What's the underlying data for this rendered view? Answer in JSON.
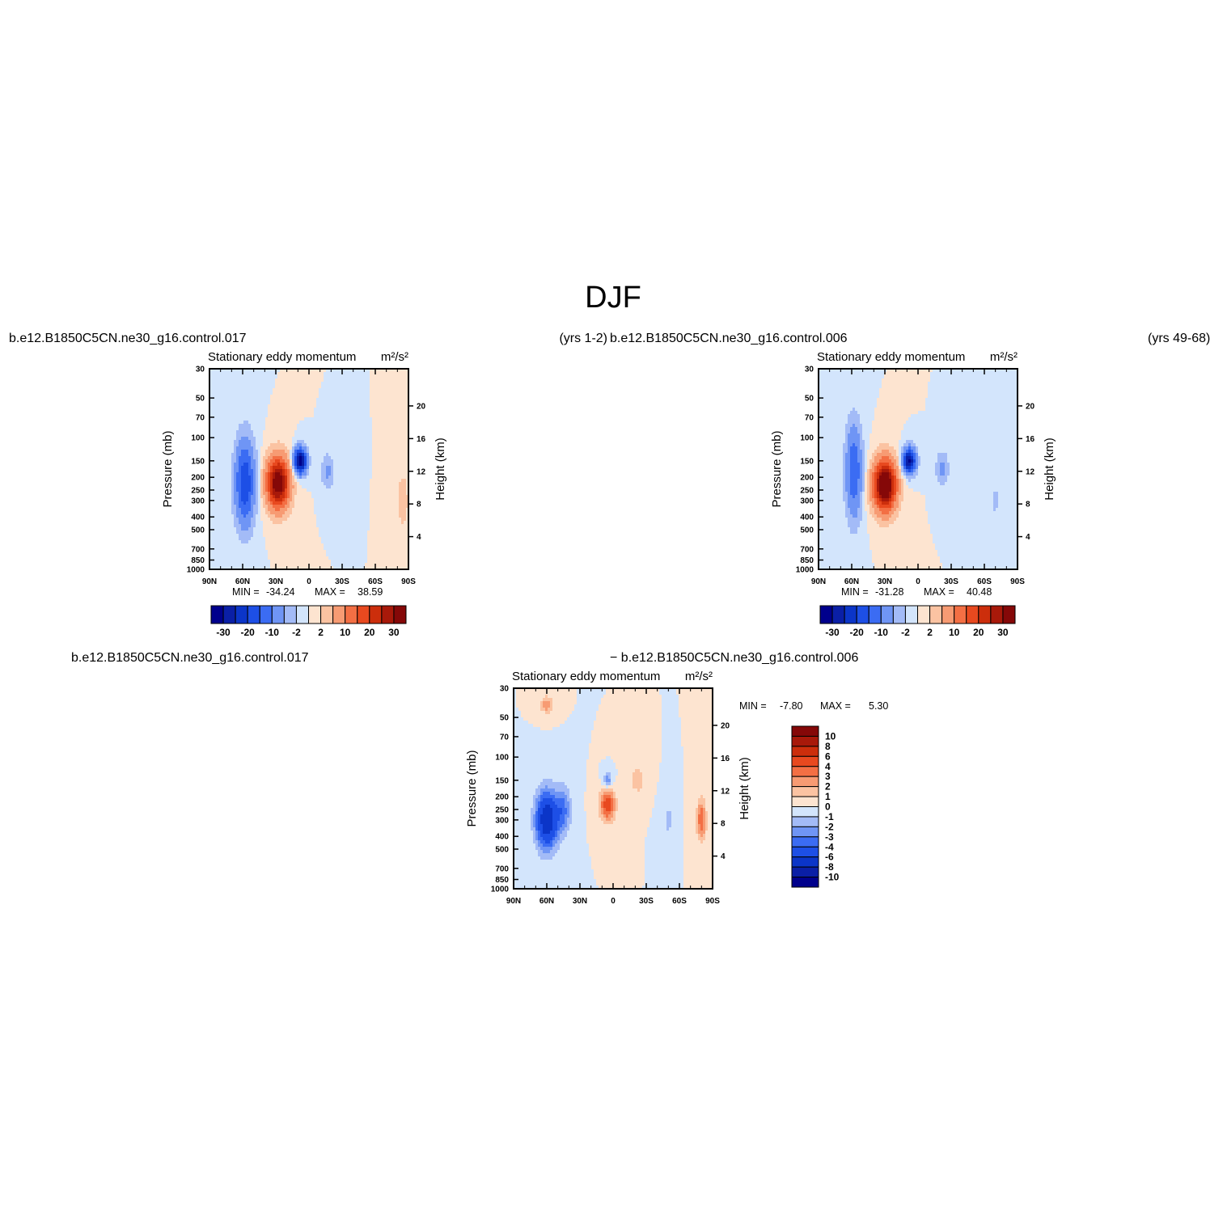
{
  "figure": {
    "title": "DJF",
    "top_left_case": "b.e12.B1850C5CN.ne30_g16.control.017",
    "top_left_years": "(yrs 1-2)",
    "top_right_case": "b.e12.B1850C5CN.ne30_g16.control.006",
    "top_right_years": "(yrs 49-68)",
    "diff_left_case": "b.e12.B1850C5CN.ne30_g16.control.017",
    "diff_right_case": "− b.e12.B1850C5CN.ne30_g16.control.006"
  },
  "colors": {
    "blue_scale": [
      "#00008c",
      "#0a1fa6",
      "#0b35c8",
      "#1d4fe6",
      "#3b6cf3",
      "#6f95f5",
      "#a3bbf7",
      "#d3e5fc"
    ],
    "red_scale": [
      "#fde4d0",
      "#fbc3a2",
      "#f79b73",
      "#f36f44",
      "#e8491f",
      "#cc2e0c",
      "#a8190a",
      "#850808"
    ]
  },
  "chart_data": [
    {
      "id": "panel-017",
      "type": "heatmap",
      "title": "Stationary eddy momentum",
      "units_label": "m²/s²",
      "xlabel": "",
      "ylabel": "Pressure (mb)",
      "y2label": "Height (km)",
      "x_ticks": [
        "90N",
        "60N",
        "30N",
        "0",
        "30S",
        "60S",
        "90S"
      ],
      "x_range": [
        90,
        -90
      ],
      "y_ticks": [
        30,
        50,
        70,
        100,
        150,
        200,
        250,
        300,
        400,
        500,
        700,
        850,
        1000
      ],
      "y_range": [
        30,
        1000
      ],
      "y_scale": "log",
      "y2_ticks": [
        4,
        8,
        12,
        16,
        20
      ],
      "min_label": "MIN = ",
      "min_value": "-34.24",
      "max_label": "MAX = ",
      "max_value": "38.59",
      "contour_levels": [
        -30,
        -25,
        -20,
        -15,
        -10,
        -5,
        -2,
        0,
        2,
        5,
        10,
        15,
        20,
        25,
        30
      ],
      "colorbar_labels": [
        "-30",
        "-20",
        "-10",
        "-2",
        "2",
        "10",
        "20",
        "30"
      ],
      "features": [
        {
          "lat": 58,
          "p": 220,
          "amp": -20,
          "wlat": 6,
          "wlog": 0.5
        },
        {
          "lat": 28,
          "p": 220,
          "amp": 36,
          "wlat": 7,
          "wlog": 0.3
        },
        {
          "lat": 8,
          "p": 150,
          "amp": -34,
          "wlat": 4,
          "wlog": 0.15
        },
        {
          "lat": -17,
          "p": 180,
          "amp": -6,
          "wlat": 4,
          "wlog": 0.2
        },
        {
          "lat": -85,
          "p": 300,
          "amp": 5,
          "wlat": 3,
          "wlog": 0.3
        }
      ]
    },
    {
      "id": "panel-006",
      "type": "heatmap",
      "title": "Stationary eddy momentum",
      "units_label": "m²/s²",
      "xlabel": "",
      "ylabel": "Pressure (mb)",
      "y2label": "Height (km)",
      "x_ticks": [
        "90N",
        "60N",
        "30N",
        "0",
        "30S",
        "60S",
        "90S"
      ],
      "x_range": [
        90,
        -90
      ],
      "y_ticks": [
        30,
        50,
        70,
        100,
        150,
        200,
        250,
        300,
        400,
        500,
        700,
        850,
        1000
      ],
      "y_range": [
        30,
        1000
      ],
      "y_scale": "log",
      "y2_ticks": [
        4,
        8,
        12,
        16,
        20
      ],
      "min_label": "MIN = ",
      "min_value": "-31.28",
      "max_label": "MAX = ",
      "max_value": "40.48",
      "contour_levels": [
        -30,
        -25,
        -20,
        -15,
        -10,
        -5,
        -2,
        0,
        2,
        5,
        10,
        15,
        20,
        25,
        30
      ],
      "colorbar_labels": [
        "-30",
        "-20",
        "-10",
        "-2",
        "2",
        "10",
        "20",
        "30"
      ],
      "features": [
        {
          "lat": 58,
          "p": 180,
          "amp": -15,
          "wlat": 5,
          "wlog": 0.55
        },
        {
          "lat": 30,
          "p": 230,
          "amp": 40,
          "wlat": 7,
          "wlog": 0.3
        },
        {
          "lat": 8,
          "p": 150,
          "amp": -31,
          "wlat": 4,
          "wlog": 0.15
        },
        {
          "lat": -22,
          "p": 170,
          "amp": -6,
          "wlat": 4,
          "wlog": 0.2
        },
        {
          "lat": -70,
          "p": 300,
          "amp": -3,
          "wlat": 3,
          "wlog": 0.2
        }
      ]
    },
    {
      "id": "panel-diff",
      "type": "heatmap",
      "title": "Stationary eddy momentum",
      "units_label": "m²/s²",
      "xlabel": "",
      "ylabel": "Pressure (mb)",
      "y2label": "Height (km)",
      "x_ticks": [
        "90N",
        "60N",
        "30N",
        "0",
        "30S",
        "60S",
        "90S"
      ],
      "x_range": [
        90,
        -90
      ],
      "y_ticks": [
        30,
        50,
        70,
        100,
        150,
        200,
        250,
        300,
        400,
        500,
        700,
        850,
        1000
      ],
      "y_range": [
        30,
        1000
      ],
      "y_scale": "log",
      "y2_ticks": [
        4,
        8,
        12,
        16,
        20
      ],
      "min_label": "MIN = ",
      "min_value": "-7.80",
      "max_label": "MAX = ",
      "max_value": "5.30",
      "contour_levels": [
        -10,
        -8,
        -6,
        -4,
        -3,
        -2,
        -1,
        0,
        1,
        2,
        3,
        4,
        6,
        8,
        10
      ],
      "colorbar_labels": [
        "10",
        "8",
        "6",
        "4",
        "3",
        "2",
        "1",
        "0",
        "-1",
        "-2",
        "-3",
        "-4",
        "-6",
        "-8",
        "-10"
      ],
      "features": [
        {
          "lat": 60,
          "p": 300,
          "amp": -7.8,
          "wlat": 7,
          "wlog": 0.35
        },
        {
          "lat": 45,
          "p": 250,
          "amp": -3,
          "wlat": 5,
          "wlog": 0.3
        },
        {
          "lat": 60,
          "p": 40,
          "amp": 3,
          "wlat": 4,
          "wlog": 0.1
        },
        {
          "lat": 5,
          "p": 230,
          "amp": 5,
          "wlat": 5,
          "wlog": 0.2
        },
        {
          "lat": 5,
          "p": 150,
          "amp": -3,
          "wlat": 3,
          "wlog": 0.1
        },
        {
          "lat": -22,
          "p": 150,
          "amp": 2,
          "wlat": 4,
          "wlog": 0.15
        },
        {
          "lat": -80,
          "p": 300,
          "amp": 4,
          "wlat": 3,
          "wlog": 0.25
        },
        {
          "lat": -50,
          "p": 300,
          "amp": -1.5,
          "wlat": 3,
          "wlog": 0.2
        }
      ]
    }
  ]
}
